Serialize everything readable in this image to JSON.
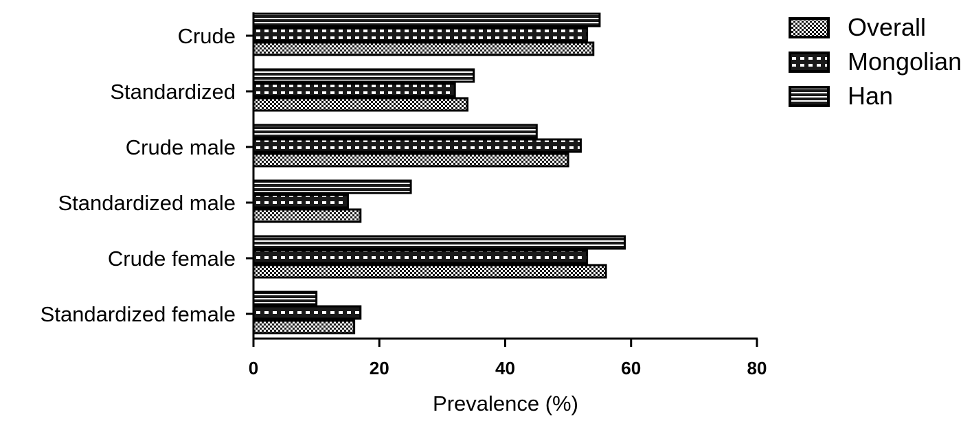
{
  "chart_data": {
    "type": "bar",
    "orientation": "horizontal",
    "categories": [
      "Crude",
      "Standardized",
      "Crude male",
      "Standardized male",
      "Crude female",
      "Standardized female"
    ],
    "series": [
      {
        "name": "Overall",
        "values": [
          54,
          34,
          50,
          17,
          56,
          16
        ]
      },
      {
        "name": "Mongolian",
        "values": [
          53,
          32,
          52,
          15,
          53,
          17
        ]
      },
      {
        "name": "Han",
        "values": [
          55,
          35,
          45,
          25,
          59,
          10
        ]
      }
    ],
    "xlabel": "Prevalence (%)",
    "xlim": [
      0,
      80
    ],
    "xticks": [
      0,
      20,
      40,
      60,
      80
    ],
    "grid": false,
    "legend_position": "top-right",
    "colors": {
      "bar_fill": "#1a1a1a",
      "pattern_light": "#ffffff"
    }
  }
}
